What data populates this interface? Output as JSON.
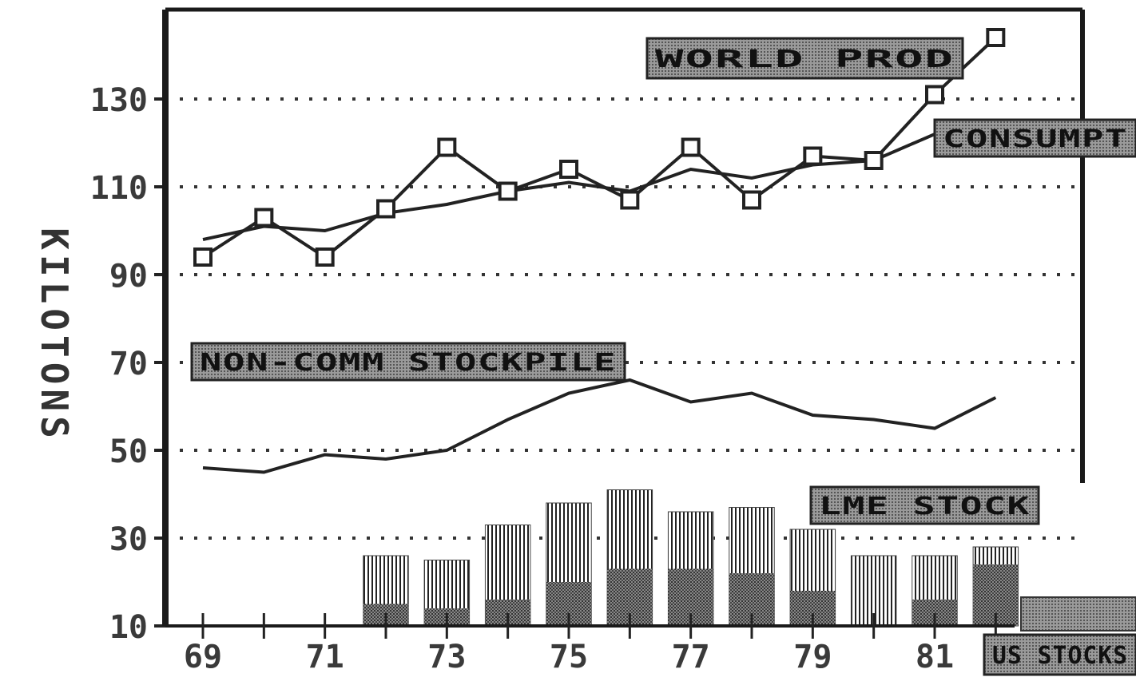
{
  "chart_data": {
    "type": "line",
    "title": "",
    "xlabel": "",
    "ylabel": "KILOTONS",
    "x_ticks": [
      "69",
      "71",
      "73",
      "75",
      "77",
      "79",
      "81"
    ],
    "y_ticks": [
      10,
      30,
      50,
      70,
      90,
      110,
      130
    ],
    "xlim": [
      1968,
      1983
    ],
    "ylim": [
      10,
      145
    ],
    "grid": "dotted-horizontal",
    "x": [
      1969,
      1970,
      1971,
      1972,
      1973,
      1974,
      1975,
      1976,
      1977,
      1978,
      1979,
      1980,
      1981,
      1982
    ],
    "series": [
      {
        "name": "WORLD PROD",
        "kind": "line-markers",
        "color": "#222222",
        "values": [
          94,
          103,
          94,
          105,
          119,
          109,
          114,
          107,
          119,
          107,
          117,
          116,
          131,
          144
        ]
      },
      {
        "name": "CONSUMPTION",
        "kind": "line",
        "color": "#222222",
        "values": [
          98,
          101,
          100,
          104,
          106,
          109,
          111,
          109,
          114,
          112,
          115,
          116,
          122,
          122
        ]
      },
      {
        "name": "NON-COMM STOCKPILE",
        "kind": "line",
        "color": "#222222",
        "values": [
          46,
          45,
          49,
          48,
          50,
          57,
          63,
          66,
          61,
          63,
          58,
          57,
          55,
          62
        ]
      },
      {
        "name": "LME STOCK",
        "kind": "bar",
        "color": "#333333",
        "values": [
          0,
          0,
          0,
          26,
          25,
          33,
          38,
          41,
          36,
          37,
          32,
          26,
          26,
          28
        ]
      },
      {
        "name": "US STOCKS",
        "kind": "bar",
        "color": "#555555",
        "values": [
          0,
          0,
          0,
          15,
          14,
          16,
          20,
          23,
          23,
          22,
          18,
          10,
          16,
          24
        ]
      }
    ],
    "annotations": [
      {
        "text": "WORLD PROD",
        "series": "WORLD PROD"
      },
      {
        "text": "CONSUMPT",
        "series": "CONSUMPTION"
      },
      {
        "text": "NON-COMM STOCKPILE",
        "series": "NON-COMM STOCKPILE"
      },
      {
        "text": "LME STOCK",
        "series": "LME STOCK"
      },
      {
        "text": "US STOCKS",
        "series": "US STOCKS"
      }
    ]
  }
}
